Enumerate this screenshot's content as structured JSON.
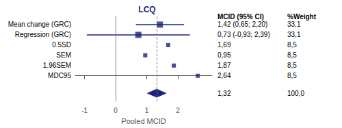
{
  "chart_data": {
    "type": "forest",
    "title": "LCQ",
    "xlabel": "Pooled MCID",
    "xlim": [
      -1.3,
      3.1
    ],
    "xticks": [
      -1,
      0,
      1,
      2
    ],
    "color": "#1a237e",
    "reference_line": 0,
    "table_headers": [
      "MCID (95% CI)",
      "%Weight"
    ],
    "rows": [
      {
        "label": "Mean change (GRC)",
        "value": 1.42,
        "ci_low": 0.65,
        "ci_high": 2.2,
        "weight": 33.1,
        "value_label": "1,42 (0,65; 2,20)",
        "weight_label": "33,1"
      },
      {
        "label": "Regression (GRC)",
        "value": 0.73,
        "ci_low": -0.93,
        "ci_high": 2.39,
        "weight": 33.1,
        "value_label": "0,73 (-0,93; 2,39)",
        "weight_label": "33,1"
      },
      {
        "label": "0.5SD",
        "value": 1.69,
        "weight": 8.5,
        "value_label": "1,69",
        "weight_label": "8,5"
      },
      {
        "label": "SEM",
        "value": 0.95,
        "weight": 8.5,
        "value_label": "0,95",
        "weight_label": "8,5"
      },
      {
        "label": "1.96SEM",
        "value": 1.87,
        "weight": 8.5,
        "value_label": "1,87",
        "weight_label": "8,5"
      },
      {
        "label": "MDC95",
        "value": 2.64,
        "weight": 8.5,
        "value_label": "2,64",
        "weight_label": "8,5"
      }
    ],
    "pooled": {
      "value": 1.32,
      "ci_low": 1.0,
      "ci_high": 1.64,
      "weight": 100.0,
      "value_label": "1,32",
      "weight_label": "100,0"
    }
  }
}
